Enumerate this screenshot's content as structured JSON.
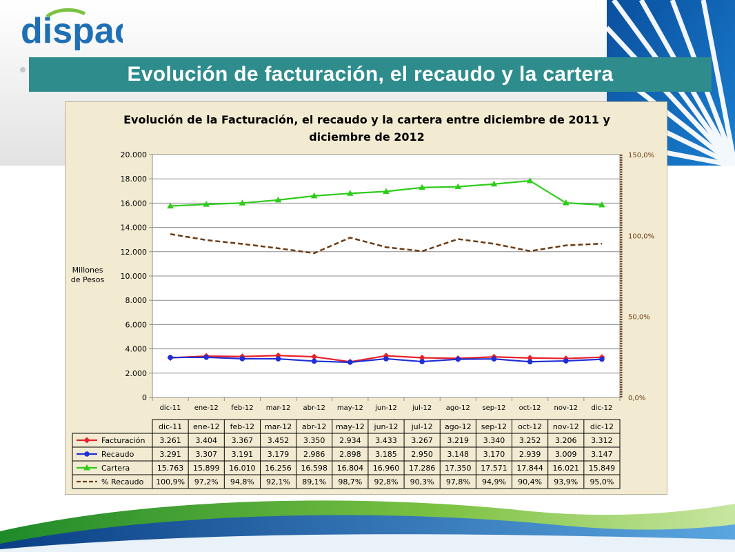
{
  "slide": {
    "logo_text": "dispac",
    "title": "Evolución de facturación, el recaudo y la cartera",
    "colors": {
      "title_bar": "#2e8c8c",
      "chart_bg": "#f2ebd2",
      "accent": "#1f6fb5"
    }
  },
  "chart_data": {
    "type": "line",
    "title_line1": "Evolución de la Facturación, el recaudo y la cartera entre diciembre de 2011 y",
    "title_line2": "diciembre de 2012",
    "ylabel_line1": "Millones",
    "ylabel_line2": "de Pesos",
    "categories": [
      "dic-11",
      "ene-12",
      "feb-12",
      "mar-12",
      "abr-12",
      "may-12",
      "jun-12",
      "jul-12",
      "ago-12",
      "sep-12",
      "oct-12",
      "nov-12",
      "dic-12"
    ],
    "ylim": [
      0,
      20000
    ],
    "y_ticks": [
      "0",
      "2.000",
      "4.000",
      "6.000",
      "8.000",
      "10.000",
      "12.000",
      "14.000",
      "16.000",
      "18.000",
      "20.000"
    ],
    "y2lim": [
      0,
      150
    ],
    "y2_ticks": [
      "0,0%",
      "50,0%",
      "100,0%",
      "150,0%"
    ],
    "grid": true,
    "series": [
      {
        "name": "Facturación",
        "axis": "left",
        "color": "#e8202a",
        "marker": "diamond",
        "values": [
          3261,
          3404,
          3367,
          3452,
          3350,
          2934,
          3433,
          3267,
          3219,
          3340,
          3252,
          3206,
          3312
        ],
        "labels": [
          "3.261",
          "3.404",
          "3.367",
          "3.452",
          "3.350",
          "2.934",
          "3.433",
          "3.267",
          "3.219",
          "3.340",
          "3.252",
          "3.206",
          "3.312"
        ]
      },
      {
        "name": "Recaudo",
        "axis": "left",
        "color": "#1f2fd6",
        "marker": "circle",
        "values": [
          3291,
          3307,
          3191,
          3179,
          2986,
          2898,
          3185,
          2950,
          3148,
          3170,
          2939,
          3009,
          3147
        ],
        "labels": [
          "3.291",
          "3.307",
          "3.191",
          "3.179",
          "2.986",
          "2.898",
          "3.185",
          "2.950",
          "3.148",
          "3.170",
          "2.939",
          "3.009",
          "3.147"
        ]
      },
      {
        "name": "Cartera",
        "axis": "left",
        "color": "#2ecc1a",
        "marker": "triangle",
        "values": [
          15763,
          15899,
          16010,
          16256,
          16598,
          16804,
          16960,
          17286,
          17350,
          17571,
          17844,
          16021,
          15849
        ],
        "labels": [
          "15.763",
          "15.899",
          "16.010",
          "16.256",
          "16.598",
          "16.804",
          "16.960",
          "17.286",
          "17.350",
          "17.571",
          "17.844",
          "16.021",
          "15.849"
        ]
      },
      {
        "name": "% Recaudo",
        "axis": "right",
        "color": "#6b3a12",
        "marker": "none",
        "dashed": true,
        "values": [
          100.9,
          97.2,
          94.8,
          92.1,
          89.1,
          98.7,
          92.8,
          90.3,
          97.8,
          94.9,
          90.4,
          93.9,
          95.0
        ],
        "labels": [
          "100,9%",
          "97,2%",
          "94,8%",
          "92,1%",
          "89,1%",
          "98,7%",
          "92,8%",
          "90,3%",
          "97,8%",
          "94,9%",
          "90,4%",
          "93,9%",
          "95,0%"
        ]
      }
    ]
  }
}
